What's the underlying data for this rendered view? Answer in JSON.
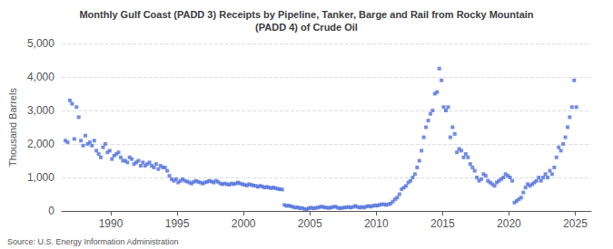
{
  "chart_data": {
    "type": "scatter",
    "title": "Monthly Gulf Coast (PADD 3) Receipts by Pipeline, Tanker, Barge and Rail from Rocky Mountain\n(PADD 4) of Crude Oil",
    "ylabel": "Thousand Barrels",
    "annotations": [
      "Source: U.S. Energy Information Administration"
    ],
    "marker": "square",
    "grid": true,
    "xlim": [
      1986.3,
      2026.2
    ],
    "xticks": [
      1990,
      1995,
      2000,
      2005,
      2010,
      2015,
      2020,
      2025
    ],
    "ylim": [
      0,
      5000
    ],
    "yticks": [
      0,
      {
        "value": 1000,
        "label": "1,000"
      },
      {
        "value": 2000,
        "label": "2,000"
      },
      {
        "value": 3000,
        "label": "3,000"
      },
      {
        "value": 4000,
        "label": "4,000"
      },
      {
        "value": 5000,
        "label": "5,000"
      }
    ],
    "x": [
      1986.583,
      1986.75,
      1986.917,
      1987.083,
      1987.25,
      1987.417,
      1987.583,
      1987.75,
      1987.917,
      1988.083,
      1988.25,
      1988.417,
      1988.583,
      1988.75,
      1988.917,
      1989.083,
      1989.25,
      1989.417,
      1989.583,
      1989.75,
      1989.917,
      1990.083,
      1990.25,
      1990.417,
      1990.583,
      1990.75,
      1990.917,
      1991.083,
      1991.25,
      1991.417,
      1991.583,
      1991.75,
      1991.917,
      1992.083,
      1992.25,
      1992.417,
      1992.583,
      1992.75,
      1992.917,
      1993.083,
      1993.25,
      1993.417,
      1993.583,
      1993.75,
      1993.917,
      1994.083,
      1994.25,
      1994.417,
      1994.583,
      1994.75,
      1994.917,
      1995.083,
      1995.25,
      1995.417,
      1995.583,
      1995.75,
      1995.917,
      1996.083,
      1996.25,
      1996.417,
      1996.583,
      1996.75,
      1996.917,
      1997.083,
      1997.25,
      1997.417,
      1997.583,
      1997.75,
      1997.917,
      1998.083,
      1998.25,
      1998.417,
      1998.583,
      1998.75,
      1998.917,
      1999.083,
      1999.25,
      1999.417,
      1999.583,
      1999.75,
      1999.917,
      2000.083,
      2000.25,
      2000.417,
      2000.583,
      2000.75,
      2000.917,
      2001.083,
      2001.25,
      2001.417,
      2001.583,
      2001.75,
      2001.917,
      2002.083,
      2002.25,
      2002.417,
      2002.583,
      2002.75,
      2002.917,
      2003.083,
      2003.25,
      2003.417,
      2003.583,
      2003.75,
      2003.917,
      2004.083,
      2004.25,
      2004.417,
      2004.583,
      2004.75,
      2004.917,
      2005.083,
      2005.25,
      2005.417,
      2005.583,
      2005.75,
      2005.917,
      2006.083,
      2006.25,
      2006.417,
      2006.583,
      2006.75,
      2006.917,
      2007.083,
      2007.25,
      2007.417,
      2007.583,
      2007.75,
      2007.917,
      2008.083,
      2008.25,
      2008.417,
      2008.583,
      2008.75,
      2008.917,
      2009.083,
      2009.25,
      2009.417,
      2009.583,
      2009.75,
      2009.917,
      2010.083,
      2010.25,
      2010.417,
      2010.583,
      2010.75,
      2010.917,
      2011.083,
      2011.25,
      2011.417,
      2011.583,
      2011.75,
      2011.917,
      2012.083,
      2012.25,
      2012.417,
      2012.583,
      2012.75,
      2012.917,
      2013.083,
      2013.25,
      2013.417,
      2013.583,
      2013.75,
      2013.917,
      2014.083,
      2014.25,
      2014.417,
      2014.583,
      2014.75,
      2014.917,
      2015.083,
      2015.25,
      2015.417,
      2015.583,
      2015.75,
      2015.917,
      2016.083,
      2016.25,
      2016.417,
      2016.583,
      2016.75,
      2016.917,
      2017.083,
      2017.25,
      2017.417,
      2017.583,
      2017.75,
      2017.917,
      2018.083,
      2018.25,
      2018.417,
      2018.583,
      2018.75,
      2018.917,
      2019.083,
      2019.25,
      2019.417,
      2019.583,
      2019.75,
      2019.917,
      2020.083,
      2020.25,
      2020.417,
      2020.583,
      2020.75,
      2020.917,
      2021.083,
      2021.25,
      2021.417,
      2021.583,
      2021.75,
      2021.917,
      2022.083,
      2022.25,
      2022.417,
      2022.583,
      2022.75,
      2022.917,
      2023.083,
      2023.25,
      2023.417,
      2023.583,
      2023.75,
      2023.917,
      2024.083,
      2024.25,
      2024.417,
      2024.583,
      2024.75,
      2024.917,
      2025.083
    ],
    "values": [
      2100,
      2050,
      3300,
      3200,
      2150,
      3100,
      2800,
      2100,
      1950,
      2250,
      2000,
      2050,
      1950,
      2100,
      1800,
      1700,
      1600,
      1900,
      2000,
      1750,
      1800,
      1550,
      1650,
      1700,
      1750,
      1600,
      1500,
      1500,
      1450,
      1600,
      1550,
      1400,
      1450,
      1500,
      1350,
      1450,
      1350,
      1400,
      1450,
      1350,
      1300,
      1400,
      1250,
      1350,
      1300,
      1300,
      1200,
      1050,
      950,
      900,
      950,
      850,
      900,
      950,
      900,
      880,
      850,
      820,
      870,
      900,
      870,
      850,
      820,
      850,
      870,
      900,
      880,
      850,
      900,
      870,
      820,
      800,
      820,
      800,
      780,
      820,
      800,
      820,
      850,
      820,
      800,
      780,
      760,
      800,
      780,
      760,
      750,
      720,
      750,
      730,
      700,
      720,
      700,
      680,
      700,
      680,
      660,
      650,
      640,
      180,
      150,
      160,
      140,
      120,
      100,
      110,
      80,
      90,
      60,
      50,
      80,
      100,
      80,
      90,
      100,
      120,
      130,
      110,
      100,
      90,
      100,
      120,
      130,
      100,
      80,
      90,
      100,
      110,
      120,
      100,
      120,
      150,
      120,
      100,
      120,
      100,
      130,
      150,
      130,
      150,
      170,
      160,
      180,
      200,
      200,
      180,
      200,
      220,
      280,
      350,
      400,
      500,
      650,
      700,
      750,
      850,
      900,
      1000,
      1100,
      1300,
      1500,
      1800,
      2200,
      2500,
      2700,
      2900,
      3000,
      3500,
      3550,
      4250,
      3900,
      3100,
      3000,
      3100,
      2200,
      2500,
      2300,
      1750,
      1850,
      1800,
      1600,
      1700,
      1600,
      1400,
      1300,
      1200,
      1000,
      900,
      950,
      1100,
      1050,
      900,
      850,
      800,
      750,
      850,
      900,
      950,
      1000,
      1100,
      1050,
      1000,
      900,
      250,
      300,
      350,
      400,
      550,
      700,
      800,
      750,
      800,
      850,
      900,
      1000,
      900,
      1000,
      1100,
      1000,
      1200,
      1100,
      1300,
      1600,
      1900,
      1800,
      2000,
      2200,
      2500,
      2800,
      3100,
      3900,
      3100
    ]
  }
}
